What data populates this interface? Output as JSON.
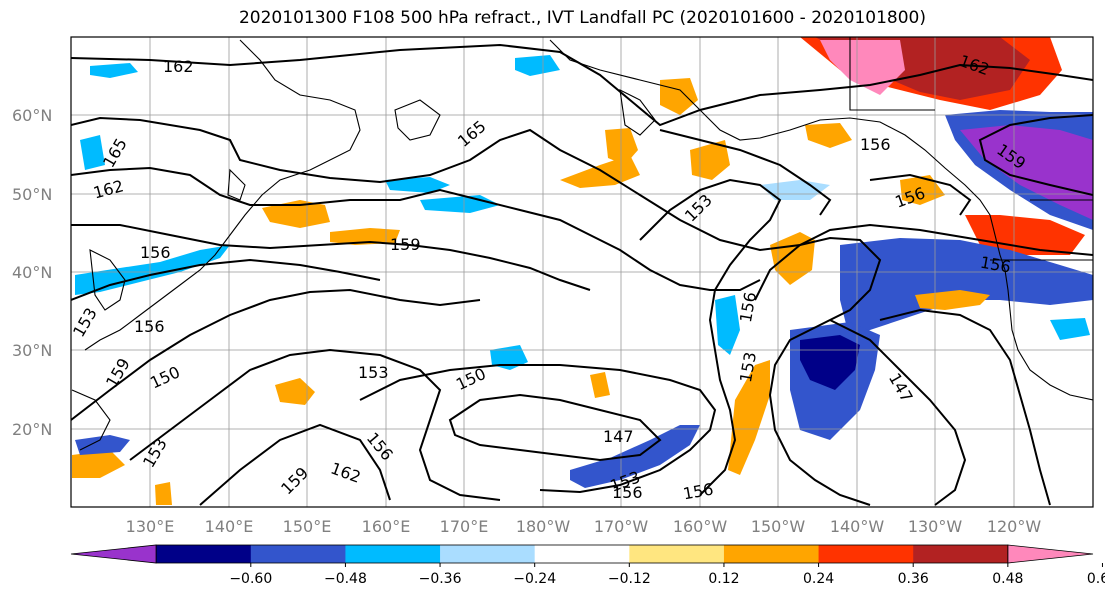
{
  "title": "2020101300 F108 500 hPa refract., IVT Landfall PC (2020101600 - 2020101800)",
  "lat_labels": [
    "60°N",
    "50°N",
    "40°N",
    "30°N",
    "20°N"
  ],
  "lon_labels": [
    "130°E",
    "140°E",
    "150°E",
    "160°E",
    "170°E",
    "180°W",
    "170°W",
    "160°W",
    "150°W",
    "140°W",
    "130°W",
    "120°W"
  ],
  "colorbar": {
    "colors": [
      "#9933cc",
      "#000088",
      "#3355cc",
      "#00bbff",
      "#aaddff",
      "#ffffff",
      "#ffe680",
      "#ffa500",
      "#ff3300",
      "#b22222",
      "#ff88bb"
    ],
    "ticks": [
      "−0.60",
      "−0.48",
      "−0.36",
      "−0.24",
      "−0.12",
      "0.12",
      "0.24",
      "0.36",
      "0.48",
      "0.60"
    ]
  },
  "contour_labels": [
    {
      "text": "162"
    },
    {
      "text": "165"
    },
    {
      "text": "165"
    },
    {
      "text": "162"
    },
    {
      "text": "156"
    },
    {
      "text": "159"
    },
    {
      "text": "153"
    },
    {
      "text": "156"
    },
    {
      "text": "156"
    },
    {
      "text": "159"
    },
    {
      "text": "162"
    },
    {
      "text": "156"
    },
    {
      "text": "153"
    },
    {
      "text": "150"
    },
    {
      "text": "159"
    },
    {
      "text": "153"
    },
    {
      "text": "150"
    },
    {
      "text": "147"
    },
    {
      "text": "153"
    },
    {
      "text": "156"
    },
    {
      "text": "156"
    },
    {
      "text": "153"
    },
    {
      "text": "159"
    },
    {
      "text": "162"
    },
    {
      "text": "156"
    },
    {
      "text": "147"
    },
    {
      "text": "153"
    },
    {
      "text": "156"
    },
    {
      "text": "156"
    }
  ]
}
